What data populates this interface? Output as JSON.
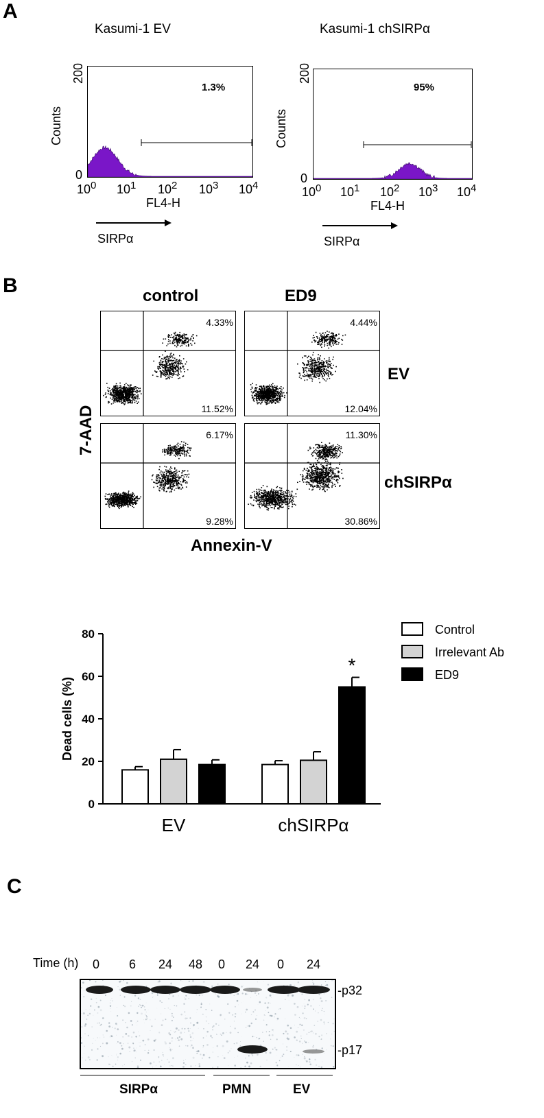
{
  "panels": {
    "A": {
      "letter": "A",
      "histograms": [
        {
          "title": "Kasumi-1 EV",
          "percent": "1.3%",
          "ylabel": "Counts",
          "xlabel": "FL4-H",
          "ytick_top": "200",
          "ytick_bottom": "0",
          "arrow_label": "SIRPα"
        },
        {
          "title": "Kasumi-1 chSIRPα",
          "percent": "95%",
          "ylabel": "Counts",
          "xlabel": "FL4-H",
          "ytick_top": "200",
          "ytick_bottom": "0",
          "arrow_label": "SIRPα"
        }
      ],
      "x_ticks": [
        {
          "base": "10",
          "exp": "0"
        },
        {
          "base": "10",
          "exp": "1"
        },
        {
          "base": "10",
          "exp": "2"
        },
        {
          "base": "10",
          "exp": "3"
        },
        {
          "base": "10",
          "exp": "4"
        }
      ],
      "histogram_fill": "#7a16c8"
    },
    "B": {
      "letter": "B",
      "col_titles": [
        "control",
        "ED9"
      ],
      "row_titles": [
        "EV",
        "chSIRPα"
      ],
      "ylabel": "7-AAD",
      "xlabel": "Annexin-V",
      "plots": [
        {
          "top_right": "4.33%",
          "bottom_right": "11.52%"
        },
        {
          "top_right": "4.44%",
          "bottom_right": "12.04%"
        },
        {
          "top_right": "6.17%",
          "bottom_right": "9.28%"
        },
        {
          "top_right": "11.30%",
          "bottom_right": "30.86%"
        }
      ]
    },
    "C": {
      "letter": "C",
      "time_label": "Time (h)",
      "lane_times": [
        "0",
        "6",
        "24",
        "48",
        "0",
        "24",
        "0",
        "24"
      ],
      "band_labels": [
        "-p32",
        "-p17"
      ],
      "groups": [
        "SIRPα",
        "PMN",
        "EV"
      ]
    }
  },
  "chart_data": {
    "type": "bar",
    "ylabel": "Dead cells (%)",
    "ylim": [
      0,
      80
    ],
    "yticks": [
      "0",
      "20",
      "40",
      "60",
      "80"
    ],
    "categories": [
      "EV",
      "chSIRPα"
    ],
    "series": [
      {
        "name": "Control",
        "color": "#ffffff",
        "values": [
          16,
          18.5
        ],
        "errors": [
          1.5,
          1.8
        ]
      },
      {
        "name": "Irrelevant Ab",
        "color": "#d3d3d3",
        "values": [
          21,
          20.5
        ],
        "errors": [
          4.5,
          4
        ]
      },
      {
        "name": "ED9",
        "color": "#000000",
        "values": [
          18.5,
          55
        ],
        "errors": [
          2.2,
          4.5
        ]
      }
    ],
    "annotation": "*",
    "legend_position": "top-right"
  }
}
